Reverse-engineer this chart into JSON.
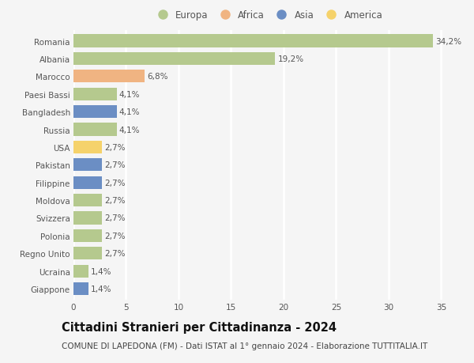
{
  "categories": [
    "Romania",
    "Albania",
    "Marocco",
    "Paesi Bassi",
    "Bangladesh",
    "Russia",
    "USA",
    "Pakistan",
    "Filippine",
    "Moldova",
    "Svizzera",
    "Polonia",
    "Regno Unito",
    "Ucraina",
    "Giappone"
  ],
  "values": [
    34.2,
    19.2,
    6.8,
    4.1,
    4.1,
    4.1,
    2.7,
    2.7,
    2.7,
    2.7,
    2.7,
    2.7,
    2.7,
    1.4,
    1.4
  ],
  "labels": [
    "34,2%",
    "19,2%",
    "6,8%",
    "4,1%",
    "4,1%",
    "4,1%",
    "2,7%",
    "2,7%",
    "2,7%",
    "2,7%",
    "2,7%",
    "2,7%",
    "2,7%",
    "1,4%",
    "1,4%"
  ],
  "continents": [
    "Europa",
    "Europa",
    "Africa",
    "Europa",
    "Asia",
    "Europa",
    "America",
    "Asia",
    "Asia",
    "Europa",
    "Europa",
    "Europa",
    "Europa",
    "Europa",
    "Asia"
  ],
  "continent_colors": {
    "Europa": "#b5c98e",
    "Africa": "#f0b482",
    "Asia": "#6b8ec4",
    "America": "#f5d26b"
  },
  "legend_order": [
    "Europa",
    "Africa",
    "Asia",
    "America"
  ],
  "title": "Cittadini Stranieri per Cittadinanza - 2024",
  "subtitle": "COMUNE DI LAPEDONA (FM) - Dati ISTAT al 1° gennaio 2024 - Elaborazione TUTTITALIA.IT",
  "xlim": [
    0,
    37
  ],
  "xticks": [
    0,
    5,
    10,
    15,
    20,
    25,
    30,
    35
  ],
  "background_color": "#f5f5f5",
  "plot_bg_color": "#f5f5f5",
  "grid_color": "#ffffff",
  "bar_height": 0.72,
  "title_fontsize": 10.5,
  "subtitle_fontsize": 7.5,
  "label_fontsize": 7.5,
  "tick_fontsize": 7.5,
  "legend_fontsize": 8.5
}
